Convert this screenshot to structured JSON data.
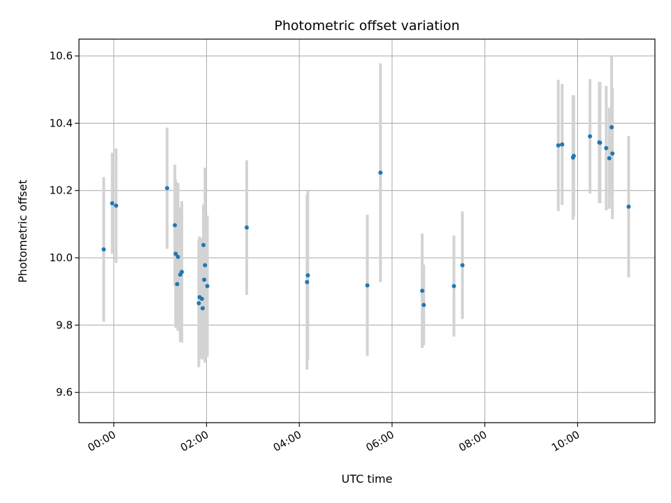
{
  "chart_data": {
    "type": "scatter",
    "title": "Photometric offset variation",
    "xlabel": "UTC time",
    "ylabel": "Photometric offset",
    "x_axis": "time",
    "x_range": [
      "23:15",
      "11:40"
    ],
    "ylim": [
      9.51,
      10.65
    ],
    "grid": true,
    "legend": "none",
    "x_ticks": [
      "00:00",
      "02:00",
      "04:00",
      "06:00",
      "08:00",
      "10:00"
    ],
    "y_ticks": [
      9.6,
      9.8,
      10.0,
      10.2,
      10.4,
      10.6
    ],
    "y_tick_labels": [
      "9.6",
      "9.8",
      "10.0",
      "10.2",
      "10.4",
      "10.6"
    ],
    "colors": {
      "marker": "#1f77b4",
      "errorbar": "#d3d3d3",
      "grid": "#b0b0b0"
    },
    "points": [
      {
        "x": "23:47",
        "y": 10.025,
        "yerr": 0.215
      },
      {
        "x": "23:58",
        "y": 10.162,
        "yerr": 0.15
      },
      {
        "x": "00:03",
        "y": 10.155,
        "yerr": 0.17
      },
      {
        "x": "01:09",
        "y": 10.207,
        "yerr": 0.18
      },
      {
        "x": "01:19",
        "y": 10.097,
        "yerr": 0.18
      },
      {
        "x": "01:20",
        "y": 10.012,
        "yerr": 0.22
      },
      {
        "x": "01:22",
        "y": 9.922,
        "yerr": 0.13
      },
      {
        "x": "01:23",
        "y": 10.003,
        "yerr": 0.22
      },
      {
        "x": "01:26",
        "y": 9.95,
        "yerr": 0.2
      },
      {
        "x": "01:28",
        "y": 9.958,
        "yerr": 0.21
      },
      {
        "x": "01:50",
        "y": 9.865,
        "yerr": 0.19
      },
      {
        "x": "01:51",
        "y": 9.883,
        "yerr": 0.18
      },
      {
        "x": "01:54",
        "y": 9.878,
        "yerr": 0.18
      },
      {
        "x": "01:55",
        "y": 9.85,
        "yerr": 0.15
      },
      {
        "x": "01:56",
        "y": 10.038,
        "yerr": 0.12
      },
      {
        "x": "01:57",
        "y": 9.935,
        "yerr": 0.14
      },
      {
        "x": "01:58",
        "y": 9.978,
        "yerr": 0.29
      },
      {
        "x": "02:01",
        "y": 9.916,
        "yerr": 0.21
      },
      {
        "x": "02:52",
        "y": 10.09,
        "yerr": 0.2
      },
      {
        "x": "04:10",
        "y": 9.928,
        "yerr": 0.26
      },
      {
        "x": "04:11",
        "y": 9.948,
        "yerr": 0.25
      },
      {
        "x": "05:28",
        "y": 9.918,
        "yerr": 0.21
      },
      {
        "x": "05:45",
        "y": 10.253,
        "yerr": 0.325
      },
      {
        "x": "06:39",
        "y": 9.902,
        "yerr": 0.17
      },
      {
        "x": "06:41",
        "y": 9.86,
        "yerr": 0.12
      },
      {
        "x": "07:20",
        "y": 9.916,
        "yerr": 0.15
      },
      {
        "x": "07:31",
        "y": 9.978,
        "yerr": 0.16
      },
      {
        "x": "09:35",
        "y": 10.334,
        "yerr": 0.195
      },
      {
        "x": "09:40",
        "y": 10.337,
        "yerr": 0.18
      },
      {
        "x": "09:54",
        "y": 10.298,
        "yerr": 0.185
      },
      {
        "x": "09:55",
        "y": 10.303,
        "yerr": 0.18
      },
      {
        "x": "10:16",
        "y": 10.361,
        "yerr": 0.17
      },
      {
        "x": "10:28",
        "y": 10.343,
        "yerr": 0.18
      },
      {
        "x": "10:29",
        "y": 10.342,
        "yerr": 0.18
      },
      {
        "x": "10:37",
        "y": 10.326,
        "yerr": 0.185
      },
      {
        "x": "10:41",
        "y": 10.296,
        "yerr": 0.15
      },
      {
        "x": "10:44",
        "y": 10.388,
        "yerr": 0.21
      },
      {
        "x": "10:45",
        "y": 10.31,
        "yerr": 0.195
      },
      {
        "x": "11:06",
        "y": 10.152,
        "yerr": 0.21
      }
    ]
  }
}
